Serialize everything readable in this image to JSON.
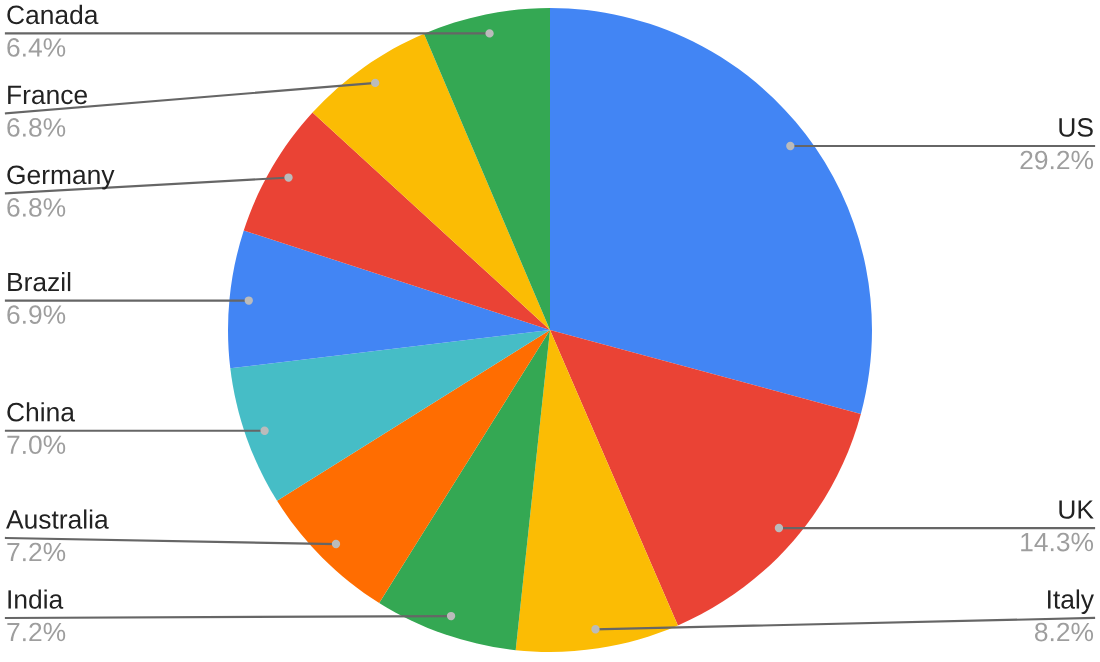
{
  "chart_data": {
    "type": "pie",
    "categories": [
      "US",
      "UK",
      "Italy",
      "India",
      "Australia",
      "China",
      "Brazil",
      "Germany",
      "France",
      "Canada"
    ],
    "values": [
      29.2,
      14.3,
      8.2,
      7.2,
      7.2,
      7.0,
      6.9,
      6.8,
      6.8,
      6.4
    ],
    "value_labels": [
      "29.2%",
      "14.3%",
      "8.2%",
      "7.2%",
      "7.2%",
      "7.0%",
      "6.9%",
      "6.8%",
      "6.8%",
      "6.4%"
    ],
    "colors": [
      "#4285f4",
      "#ea4335",
      "#fbbc04",
      "#34a853",
      "#ff6d01",
      "#46bdc6",
      "#4285f4",
      "#ea4335",
      "#fbbc04",
      "#34a853"
    ],
    "legend": false
  }
}
